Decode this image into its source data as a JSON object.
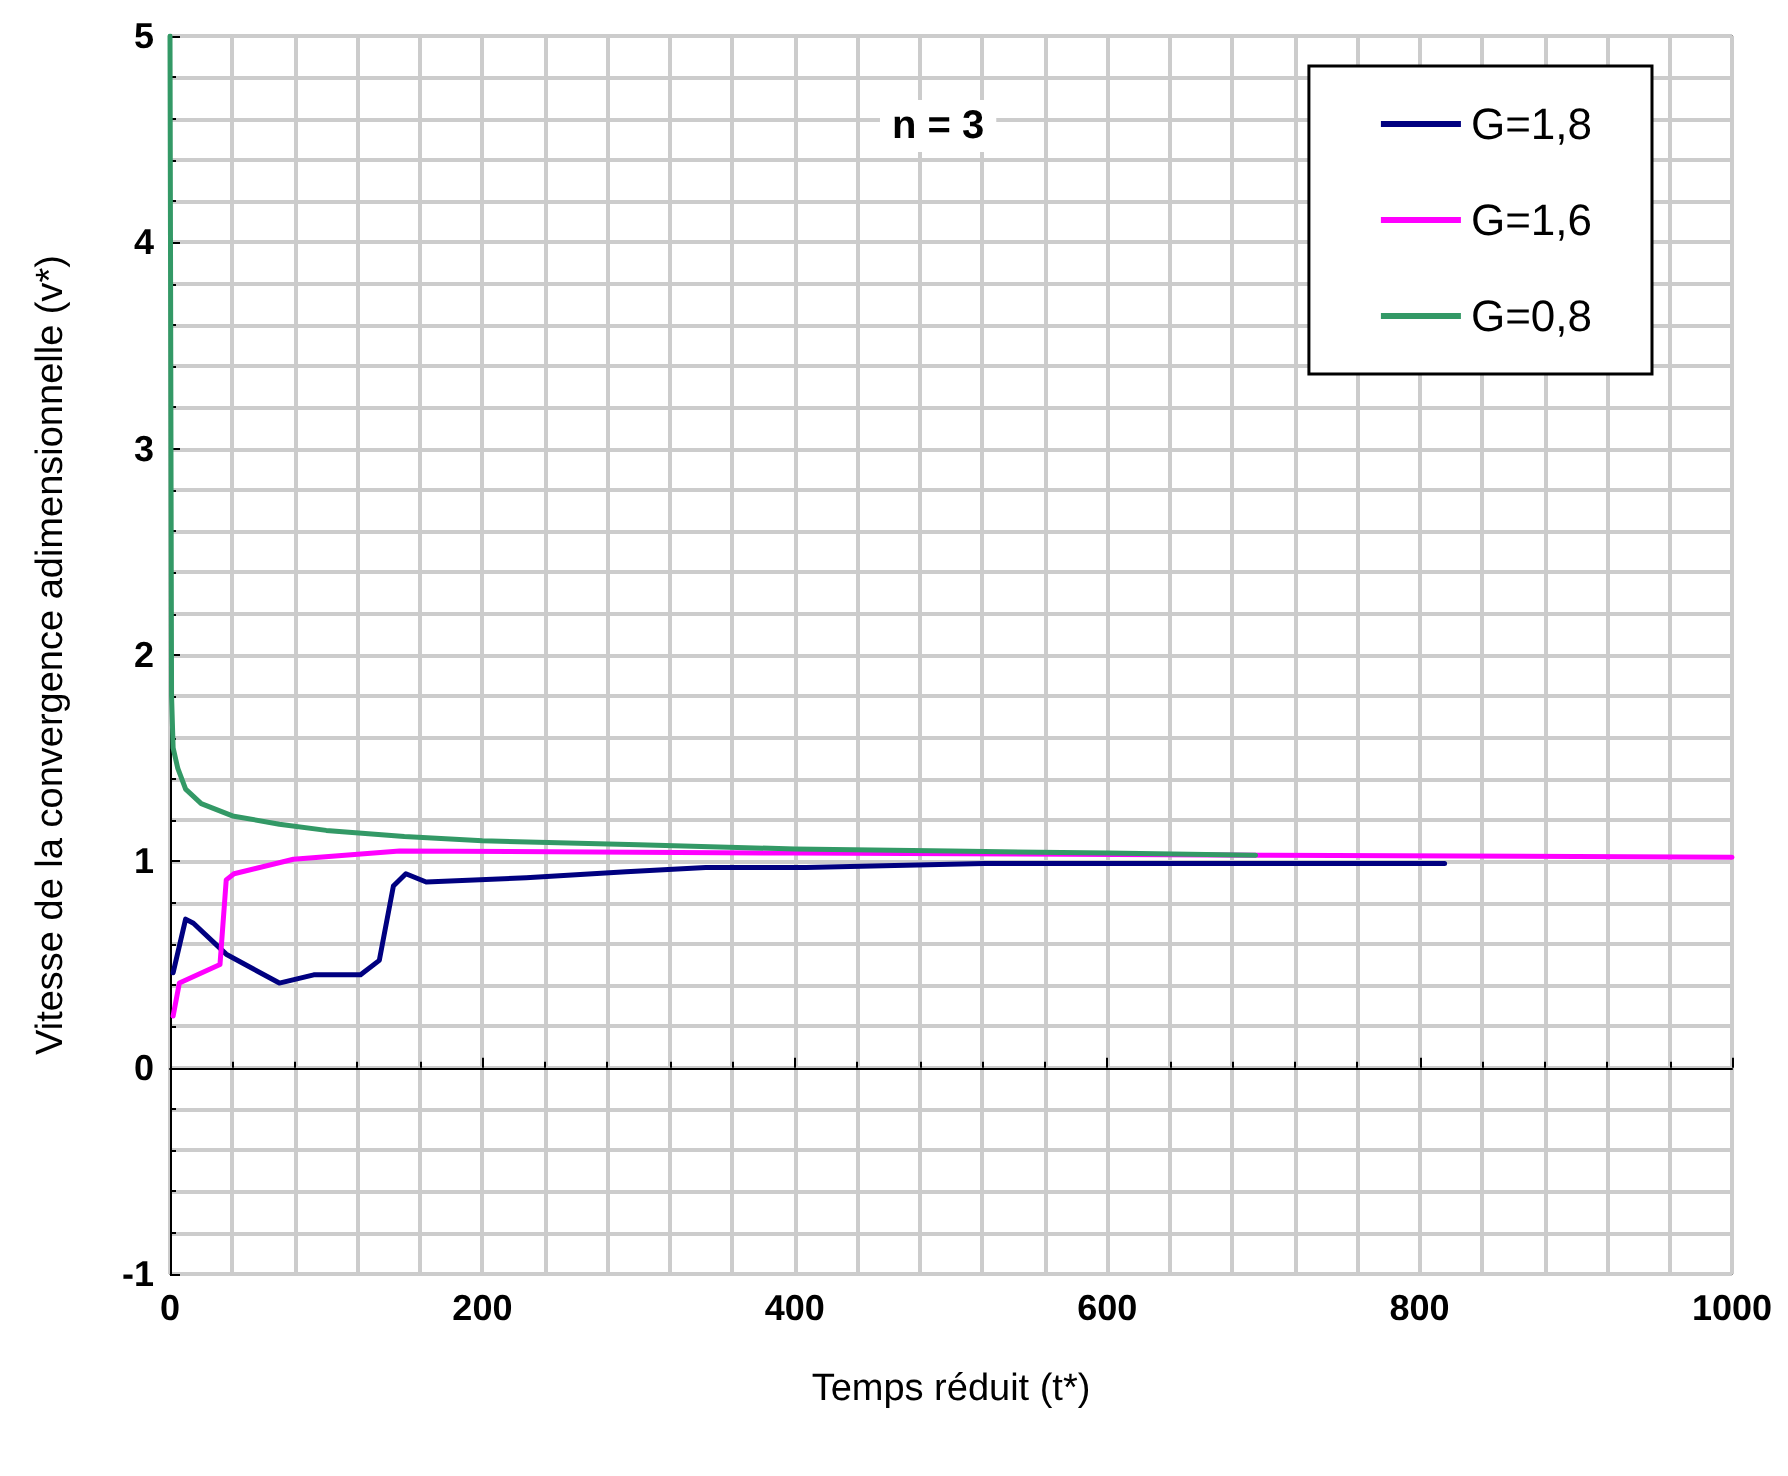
{
  "chart_data": {
    "type": "line",
    "xlabel": "Temps réduit (t*)",
    "ylabel": "Vitesse de la convergence adimensionnelle (v*)",
    "annotations": [
      "n = 3"
    ],
    "xlim": [
      0,
      1000
    ],
    "xticks": [
      0,
      200,
      400,
      600,
      800,
      1000
    ],
    "ylim": [
      -1,
      5
    ],
    "yticks": [
      -1,
      0,
      1,
      2,
      3,
      4,
      5
    ],
    "grid": true,
    "legend": "top right",
    "marker": "none",
    "line_style": "solid",
    "series": [
      {
        "name": "G=1,8",
        "color": "#000080",
        "x": [
          2,
          10,
          15,
          36,
          70,
          92,
          122,
          134,
          143,
          151,
          164,
          228,
          292,
          343,
          407,
          521,
          816
        ],
        "values": [
          0.46,
          0.72,
          0.7,
          0.55,
          0.41,
          0.45,
          0.45,
          0.52,
          0.88,
          0.94,
          0.9,
          0.92,
          0.95,
          0.97,
          0.97,
          0.99,
          0.99
        ]
      },
      {
        "name": "G=1,6",
        "color": "#ff00ff",
        "x": [
          2,
          6,
          32,
          36,
          41,
          79,
          147,
          400,
          700,
          1000
        ],
        "values": [
          0.25,
          0.41,
          0.5,
          0.91,
          0.94,
          1.01,
          1.05,
          1.04,
          1.03,
          1.02
        ]
      },
      {
        "name": "G=0,8",
        "color": "#339966",
        "x": [
          0,
          1,
          2,
          5,
          10,
          20,
          40,
          70,
          100,
          150,
          200,
          300,
          400,
          500,
          600,
          695
        ],
        "values": [
          5,
          1.8,
          1.55,
          1.45,
          1.35,
          1.28,
          1.22,
          1.18,
          1.15,
          1.12,
          1.1,
          1.08,
          1.06,
          1.05,
          1.04,
          1.03
        ]
      }
    ]
  }
}
